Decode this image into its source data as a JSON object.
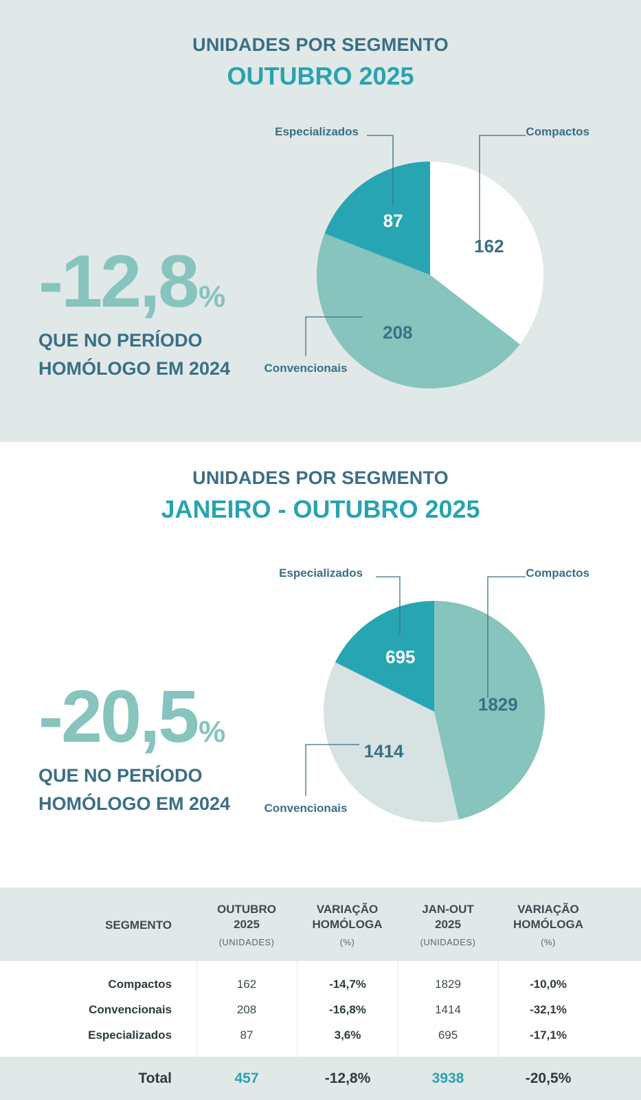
{
  "section1": {
    "title": "UNIDADES POR SEGMENTO",
    "subtitle": "OUTUBRO 2025",
    "change_value": "-12,8",
    "change_unit": "%",
    "change_caption": "QUE NO PERÍODO HOMÓLOGO EM 2024"
  },
  "section2": {
    "title": "UNIDADES POR SEGMENTO",
    "subtitle": "JANEIRO - OUTUBRO 2025",
    "change_value": "-20,5",
    "change_unit": "%",
    "change_caption": "QUE NO PERÍODO HOMÓLOGO EM 2024"
  },
  "chart_data": [
    {
      "type": "pie",
      "title": "UNIDADES POR SEGMENTO — OUTUBRO 2025",
      "categories": [
        "Compactos",
        "Convencionais",
        "Especializados"
      ],
      "values": [
        162,
        208,
        87
      ],
      "colors": [
        "#ffffff",
        "#86c4bd",
        "#28a5b2"
      ],
      "label_colors": [
        "#3a6f85",
        "#3a6f85",
        "#ffffff"
      ]
    },
    {
      "type": "pie",
      "title": "UNIDADES POR SEGMENTO — JANEIRO - OUTUBRO 2025",
      "categories": [
        "Compactos",
        "Convencionais",
        "Especializados"
      ],
      "values": [
        1829,
        1414,
        695
      ],
      "colors": [
        "#86c4bd",
        "#d7e2e2",
        "#28a5b2"
      ],
      "label_colors": [
        "#3a6f85",
        "#3a6f85",
        "#ffffff"
      ]
    }
  ],
  "table": {
    "header": {
      "segment": "SEGMENTO",
      "col1": {
        "line1": "OUTUBRO",
        "line2": "2025",
        "unit": "(UNIDADES)"
      },
      "col2": {
        "line1": "VARIAÇÃO",
        "line2": "HOMÓLOGA",
        "unit": "(%)"
      },
      "col3": {
        "line1": "JAN-OUT",
        "line2": "2025",
        "unit": "(UNIDADES)"
      },
      "col4": {
        "line1": "VARIAÇÃO",
        "line2": "HOMÓLOGA",
        "unit": "(%)"
      }
    },
    "rows": [
      {
        "segment": "Compactos",
        "oct": "162",
        "oct_var": "-14,7%",
        "ytd": "1829",
        "ytd_var": "-10,0%"
      },
      {
        "segment": "Convencionais",
        "oct": "208",
        "oct_var": "-16,8%",
        "ytd": "1414",
        "ytd_var": "-32,1%"
      },
      {
        "segment": "Especializados",
        "oct": "87",
        "oct_var": "3,6%",
        "ytd": "695",
        "ytd_var": "-17,1%"
      }
    ],
    "total": {
      "segment": "Total",
      "oct": "457",
      "oct_var": "-12,8%",
      "ytd": "3938",
      "ytd_var": "-20,5%"
    }
  }
}
